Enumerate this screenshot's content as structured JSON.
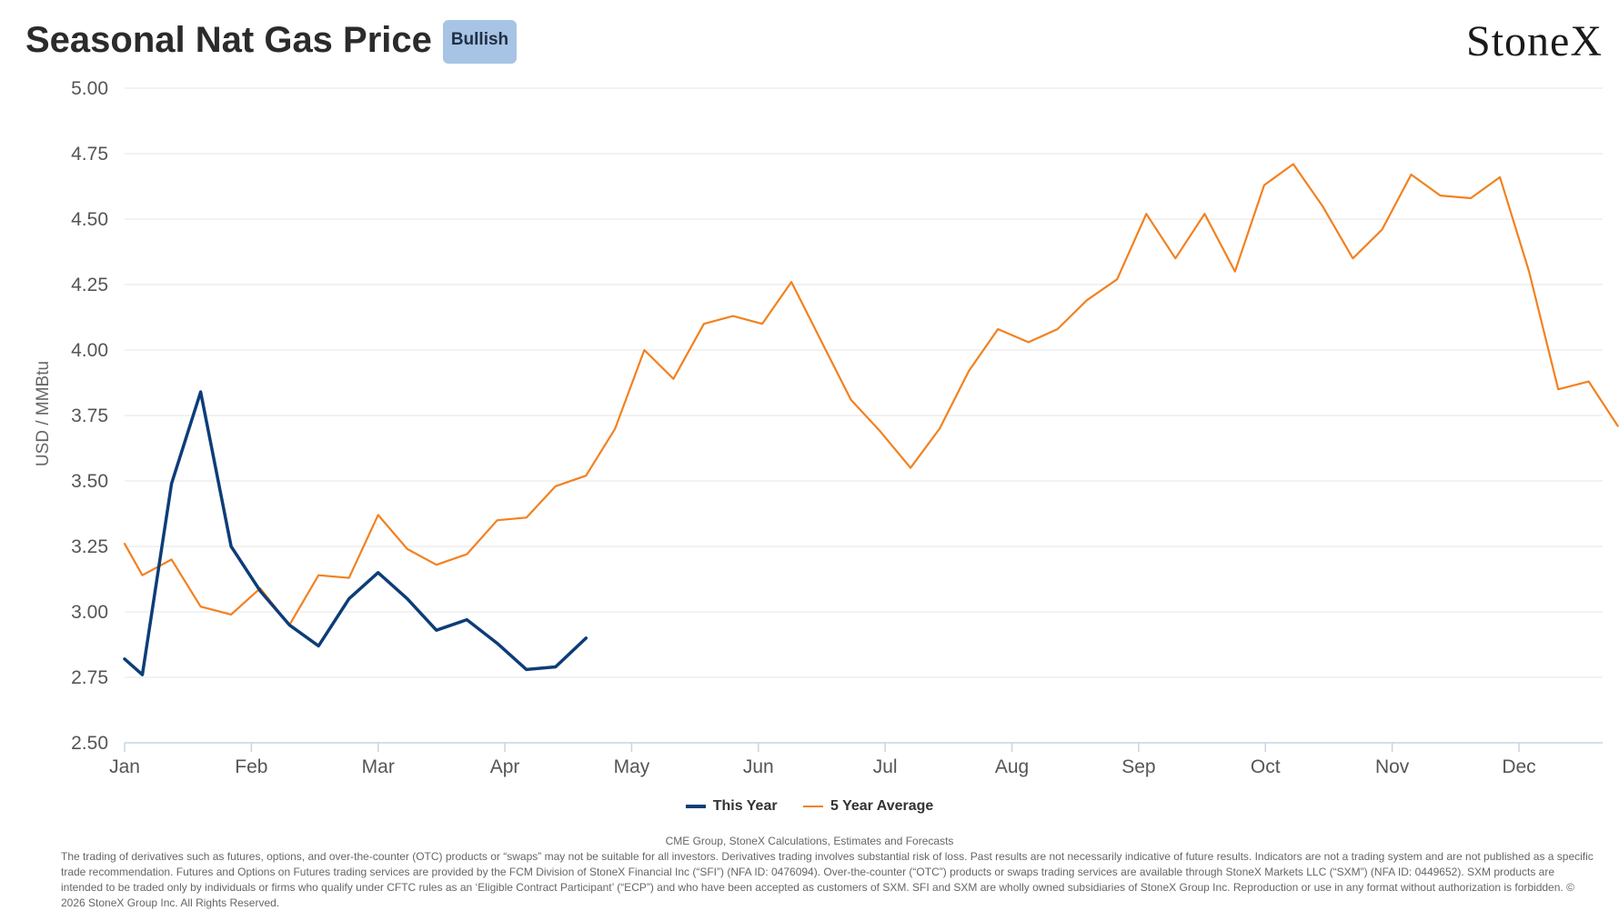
{
  "header": {
    "title": "Seasonal Nat Gas Price",
    "badge": "Bullish",
    "logo": "StoneX"
  },
  "colors": {
    "this_year": "#0d3d78",
    "five_year_avg": "#f28120",
    "badge_bg": "#a7c4e4",
    "grid": "#e6e6e6"
  },
  "footer": {
    "source": "CME Group, StoneX Calculations, Estimates and Forecasts",
    "disclaimer": "The trading of derivatives such as futures, options, and over-the-counter (OTC) products or “swaps” may not be suitable for all investors. Derivatives trading involves substantial risk of loss. Past results are not necessarily indicative of future results. Indicators are not a trading system and are not published as a specific trade recommendation. Futures and Options on Futures trading services are provided by the FCM Division of StoneX Financial Inc (“SFI”) (NFA ID: 0476094). Over-the-counter (“OTC”) products or swaps trading services are available through StoneX Markets LLC (“SXM”) (NFA ID: 0449652). SXM products are intended to be traded only by individuals or firms who qualify under CFTC rules as an ‘Eligible Contract Participant’ (“ECP”) and who have been accepted as customers of SXM. SFI and SXM are wholly owned subsidiaries of StoneX Group Inc. Reproduction or use in any format without authorization is forbidden. © 2026 StoneX Group Inc. All Rights Reserved."
  },
  "chart_data": {
    "type": "line",
    "title": "Seasonal Nat Gas Price",
    "ylabel": "USD / MMBtu",
    "xlabel": "",
    "ylim": [
      2.5,
      5.0
    ],
    "xlim": [
      0,
      12.7
    ],
    "y_ticks": [
      "2.50",
      "2.75",
      "3.00",
      "3.25",
      "3.50",
      "3.75",
      "4.00",
      "4.25",
      "4.50",
      "4.75",
      "5.00"
    ],
    "y_tick_values": [
      2.5,
      2.75,
      3.0,
      3.25,
      3.5,
      3.75,
      4.0,
      4.25,
      4.5,
      4.75,
      5.0
    ],
    "x_ticks": [
      "Jan",
      "Feb",
      "Mar",
      "Apr",
      "May",
      "Jun",
      "Jul",
      "Aug",
      "Sep",
      "Oct",
      "Nov",
      "Dec"
    ],
    "x_tick_values": [
      0,
      1,
      2,
      3,
      4,
      5,
      6,
      7,
      8,
      9,
      10,
      11
    ],
    "grid": true,
    "legend_position": "bottom-center",
    "series": [
      {
        "name": "This Year",
        "color": "#0d3d78",
        "x": [
          0.0,
          0.14,
          0.37,
          0.6,
          0.84,
          1.07,
          1.3,
          1.53,
          1.77,
          2.0,
          2.23,
          2.46,
          2.7,
          2.94,
          3.17,
          3.4,
          3.64
        ],
        "y": [
          2.82,
          2.76,
          3.49,
          3.84,
          3.25,
          3.08,
          2.95,
          2.87,
          3.05,
          3.15,
          3.05,
          2.93,
          2.97,
          2.88,
          2.78,
          2.79,
          2.9
        ]
      },
      {
        "name": "5 Year Average",
        "color": "#f28120",
        "x": [
          0.0,
          0.14,
          0.37,
          0.6,
          0.84,
          1.07,
          1.3,
          1.53,
          1.77,
          2.0,
          2.23,
          2.46,
          2.7,
          2.94,
          3.17,
          3.4,
          3.64,
          3.87,
          4.1,
          4.33,
          4.57,
          4.8,
          5.03,
          5.26,
          5.5,
          5.73,
          5.96,
          6.2,
          6.43,
          6.66,
          6.89,
          7.13,
          7.36,
          7.59,
          7.83,
          8.06,
          8.29,
          8.52,
          8.76,
          8.99,
          9.22,
          9.45,
          9.69,
          9.92,
          10.15,
          10.38,
          10.62,
          10.85,
          11.08,
          11.31,
          11.55,
          11.78
        ],
        "y": [
          3.26,
          3.14,
          3.2,
          3.02,
          2.99,
          3.09,
          2.95,
          3.14,
          3.13,
          3.37,
          3.24,
          3.18,
          3.22,
          3.35,
          3.36,
          3.48,
          3.52,
          3.7,
          4.0,
          3.89,
          4.1,
          4.13,
          4.1,
          4.26,
          4.03,
          3.81,
          3.69,
          3.55,
          3.7,
          3.92,
          4.08,
          4.03,
          4.08,
          4.19,
          4.27,
          4.52,
          4.35,
          4.52,
          4.3,
          4.63,
          4.71,
          4.55,
          4.35,
          4.46,
          4.67,
          4.59,
          4.58,
          4.66,
          4.3,
          3.85,
          3.88,
          3.71
        ]
      }
    ]
  }
}
